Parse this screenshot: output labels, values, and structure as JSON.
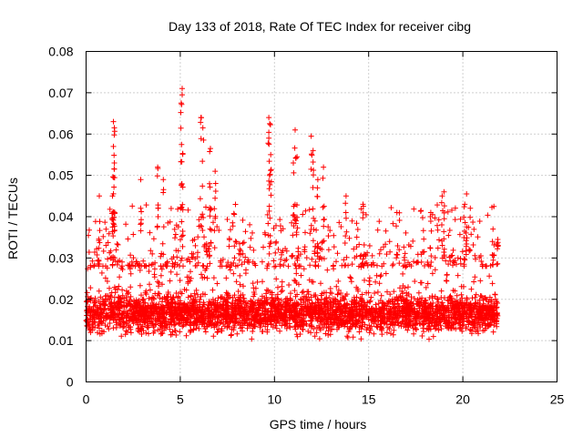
{
  "chart_data": {
    "type": "scatter",
    "title": "Day 133 of 2018, Rate Of TEC Index for receiver cibg",
    "xlabel": "GPS time / hours",
    "ylabel": "ROTI / TECUs",
    "xlim": [
      0,
      25
    ],
    "ylim": [
      0,
      0.08
    ],
    "xticks": [
      0,
      5,
      10,
      15,
      20,
      25
    ],
    "xtick_labels": [
      "0",
      "5",
      "10",
      "15",
      "20",
      "25"
    ],
    "yticks": [
      0,
      0.01,
      0.02,
      0.03,
      0.04,
      0.05,
      0.06,
      0.07,
      0.08
    ],
    "ytick_labels": [
      "0",
      "0.01",
      "0.02",
      "0.03",
      "0.04",
      "0.05",
      "0.06",
      "0.07",
      "0.08"
    ],
    "grid": true,
    "marker": "plus",
    "series": [
      {
        "name": "ROTI",
        "color": "#ff0000",
        "x_range": [
          0.0,
          21.85
        ],
        "base_level": 0.0165,
        "band": [
          0.005,
          0.028
        ],
        "peaks": [
          {
            "x": 5.1,
            "y": 0.071
          },
          {
            "x": 5.1,
            "y": 0.0695
          },
          {
            "x": 5.05,
            "y": 0.0675
          },
          {
            "x": 1.45,
            "y": 0.063
          },
          {
            "x": 1.5,
            "y": 0.0615
          },
          {
            "x": 1.45,
            "y": 0.057
          },
          {
            "x": 1.5,
            "y": 0.053
          },
          {
            "x": 6.1,
            "y": 0.064
          },
          {
            "x": 6.2,
            "y": 0.0615
          },
          {
            "x": 6.6,
            "y": 0.0565
          },
          {
            "x": 9.7,
            "y": 0.064
          },
          {
            "x": 9.75,
            "y": 0.0625
          },
          {
            "x": 9.7,
            "y": 0.059
          },
          {
            "x": 9.8,
            "y": 0.055
          },
          {
            "x": 11.1,
            "y": 0.061
          },
          {
            "x": 11.2,
            "y": 0.0545
          },
          {
            "x": 11.0,
            "y": 0.053
          },
          {
            "x": 11.95,
            "y": 0.0595
          },
          {
            "x": 12.05,
            "y": 0.056
          },
          {
            "x": 6.55,
            "y": 0.048
          },
          {
            "x": 6.85,
            "y": 0.051
          },
          {
            "x": 3.8,
            "y": 0.052
          },
          {
            "x": 4.1,
            "y": 0.049
          },
          {
            "x": 2.9,
            "y": 0.049
          },
          {
            "x": 1.4,
            "y": 0.045
          },
          {
            "x": 0.7,
            "y": 0.045
          },
          {
            "x": 12.6,
            "y": 0.052
          },
          {
            "x": 12.3,
            "y": 0.049
          },
          {
            "x": 13.8,
            "y": 0.045
          },
          {
            "x": 14.7,
            "y": 0.043
          },
          {
            "x": 16.5,
            "y": 0.041
          },
          {
            "x": 18.3,
            "y": 0.041
          },
          {
            "x": 18.9,
            "y": 0.045
          },
          {
            "x": 19.0,
            "y": 0.046
          },
          {
            "x": 20.2,
            "y": 0.0455
          },
          {
            "x": 20.1,
            "y": 0.043
          },
          {
            "x": 21.6,
            "y": 0.037
          },
          {
            "x": 21.85,
            "y": 0.0345
          }
        ]
      }
    ]
  }
}
